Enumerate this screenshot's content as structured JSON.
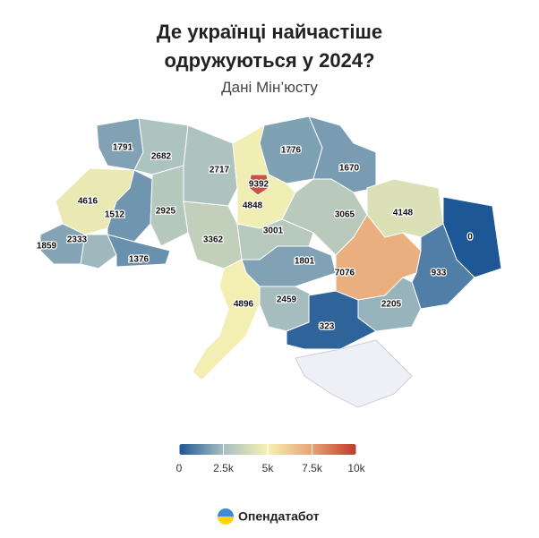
{
  "chart_data": {
    "type": "choropleth",
    "title": "Де українці найчастіше одружуються у 2024?",
    "subtitle": "Дані Мін’юсту",
    "values": [
      1791,
      2682,
      2717,
      1776,
      9392,
      4848,
      1670,
      4616,
      1512,
      2925,
      3065,
      4148,
      0,
      1859,
      2333,
      3362,
      3001,
      1376,
      1801,
      7076,
      933,
      4896,
      2459,
      2205,
      323
    ],
    "clim": [
      0,
      10000
    ],
    "colorscale": [
      "#1d5796",
      "#a7bfc0",
      "#f6f1b2",
      "#e8a274",
      "#c0392b"
    ],
    "cticks": [
      0,
      {
        "value": 2500,
        "label": "2.5k"
      },
      {
        "value": 5000,
        "label": "5k"
      },
      {
        "value": 7500,
        "label": "7.5k"
      },
      {
        "value": 10000,
        "label": "10k"
      }
    ],
    "source": "Опендатабот"
  }
}
